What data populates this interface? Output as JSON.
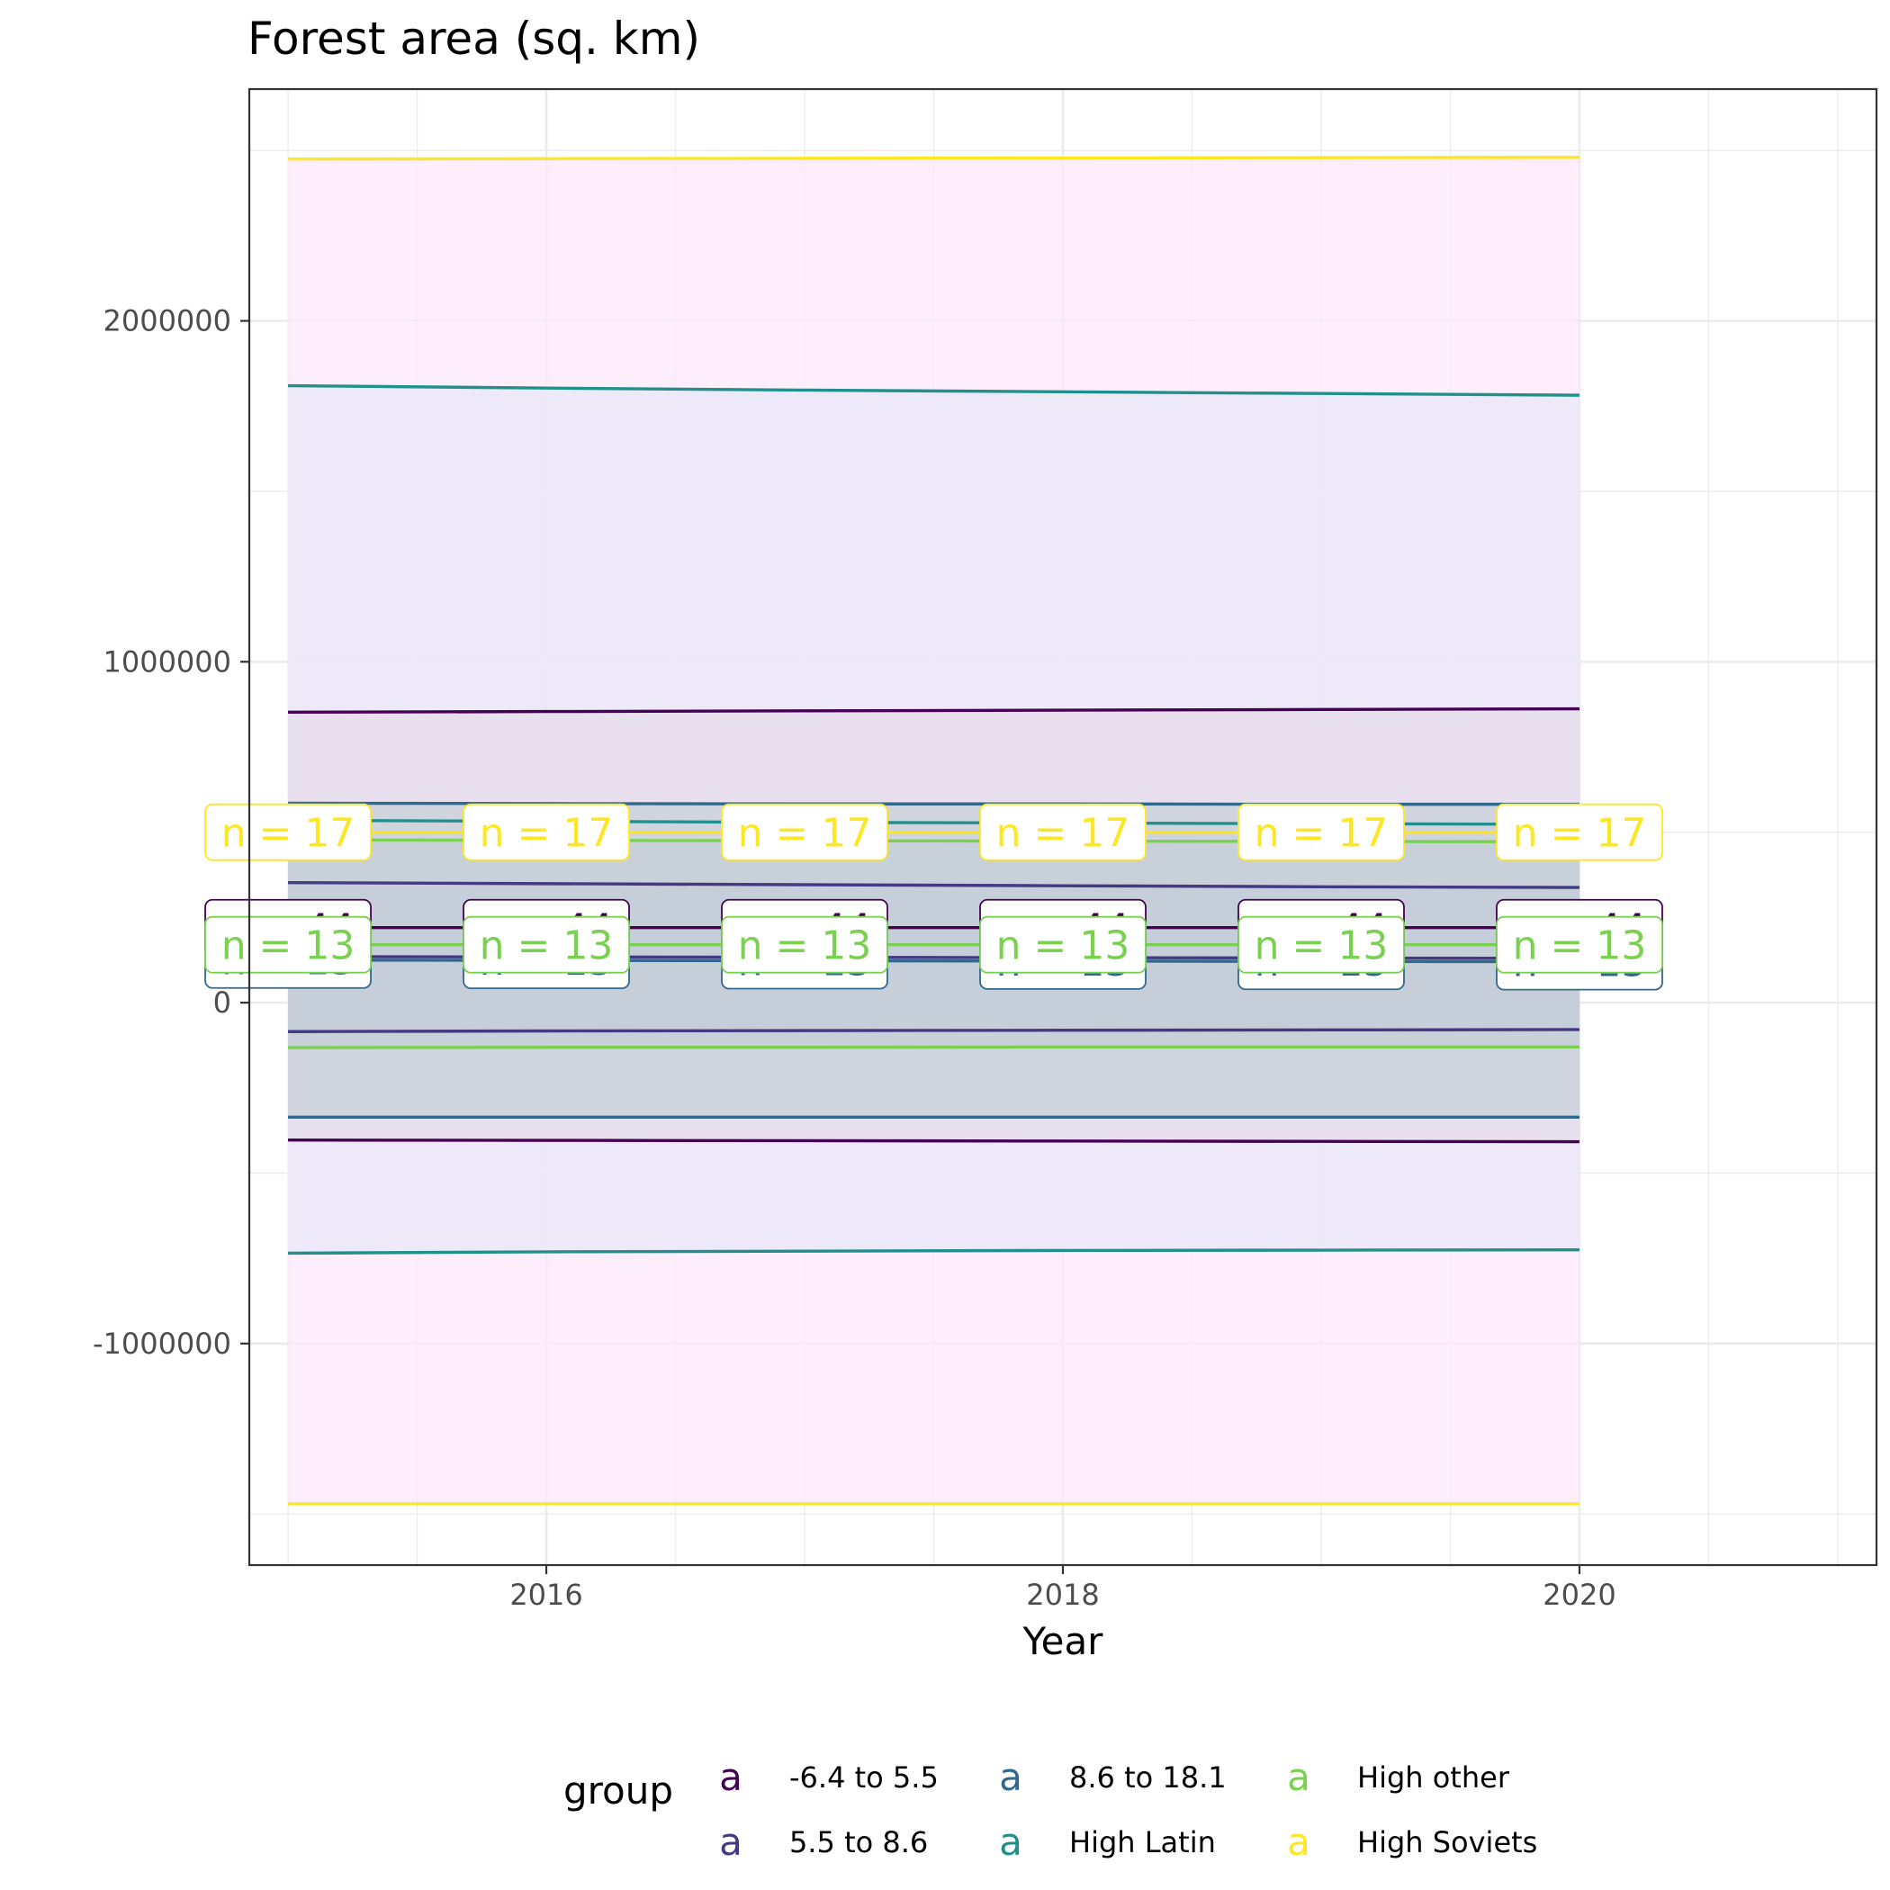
{
  "chart_data": {
    "type": "area",
    "title": "Forest area (sq. km)",
    "xlabel": "Year",
    "ylabel": "",
    "xlim": [
      2014.85,
      2021.15
    ],
    "ylim": [
      -1650000,
      2680000
    ],
    "x_ticks": [
      2016,
      2018,
      2020
    ],
    "y_ticks": [
      -1000000,
      0,
      1000000,
      2000000
    ],
    "y_tick_labels": [
      "-1000000",
      "0",
      "1000000",
      "2000000"
    ],
    "grid": true,
    "legend": {
      "title": "group",
      "position": "bottom",
      "key_glyph": "a"
    },
    "x": [
      2015,
      2016,
      2017,
      2018,
      2019,
      2020
    ],
    "series": [
      {
        "name": "High Soviets",
        "color": "#FDE725",
        "fill": "#FDE8FB",
        "mean": [
          500000,
          500000,
          500000,
          500000,
          500000,
          500000
        ],
        "upper": [
          2475000,
          2476000,
          2477000,
          2478000,
          2479000,
          2480000
        ],
        "lower": [
          -1470000,
          -1470000,
          -1470000,
          -1470000,
          -1470000,
          -1470000
        ],
        "label": "n = 17"
      },
      {
        "name": "High Latin",
        "color": "#21908C",
        "fill": "#E6E8F6",
        "mean": [
          535000,
          532000,
          529000,
          527000,
          525000,
          523000
        ],
        "upper": [
          1810000,
          1803000,
          1797000,
          1792000,
          1787000,
          1782000
        ],
        "lower": [
          -735000,
          -731000,
          -729000,
          -727000,
          -726000,
          -725000
        ],
        "label": ""
      },
      {
        "name": "-6.4 to 5.5",
        "color": "#440154",
        "fill": "#E6DDEA",
        "mean": [
          220000,
          220000,
          220000,
          220000,
          220000,
          220000
        ],
        "upper": [
          852000,
          854000,
          856000,
          858000,
          860000,
          862000
        ],
        "lower": [
          -403000,
          -404000,
          -405000,
          -406000,
          -407000,
          -408000
        ],
        "label": "n = 44"
      },
      {
        "name": "8.6 to 18.1",
        "color": "#31688E",
        "fill": "#C5CFD8",
        "mean": [
          125000,
          124000,
          123000,
          122000,
          121000,
          120000
        ],
        "upper": [
          585000,
          584000,
          583000,
          583000,
          582000,
          582000
        ],
        "lower": [
          -336000,
          -336000,
          -336000,
          -336000,
          -336000,
          -336000
        ],
        "label": "n = 13"
      },
      {
        "name": "5.5 to 8.6",
        "color": "#443A83",
        "fill": "#C5CFD8",
        "mean": [
          135000,
          134000,
          133000,
          132000,
          131000,
          130000
        ],
        "upper": [
          352000,
          349000,
          346000,
          343000,
          340000,
          338000
        ],
        "lower": [
          -85000,
          -83000,
          -82000,
          -81000,
          -80000,
          -79000
        ],
        "label": ""
      },
      {
        "name": "High other",
        "color": "#7AD151",
        "fill": "#C5CFD8",
        "mean": [
          170000,
          170000,
          170000,
          170000,
          170000,
          170000
        ],
        "upper": [
          478000,
          476000,
          475000,
          474000,
          473000,
          472000
        ],
        "lower": [
          -132000,
          -131000,
          -131000,
          -130000,
          -130000,
          -130000
        ],
        "label": "n = 13"
      }
    ],
    "legend_order": [
      "-6.4 to 5.5",
      "5.5 to 8.6",
      "8.6 to 18.1",
      "High Latin",
      "High other",
      "High Soviets"
    ]
  }
}
